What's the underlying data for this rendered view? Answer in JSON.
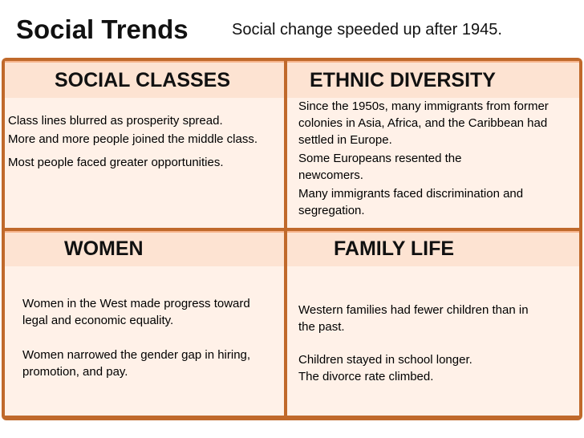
{
  "slide": {
    "title": "Social Trends",
    "subtitle": "Social change speeded up after 1945."
  },
  "quadrants": {
    "social_classes": {
      "heading": "SOCIAL CLASSES",
      "lines": [
        "Class lines blurred as prosperity spread.",
        "More and more people joined the middle class.",
        "Most people faced greater opportunities."
      ]
    },
    "ethnic_diversity": {
      "heading": "ETHNIC DIVERSITY",
      "lines": [
        "Since the 1950s, many immigrants from former colonies in Asia, Africa, and the Caribbean had  settled in Europe.",
        "Some Europeans resented the newcomers.",
        "Many immigrants faced discrimination and segregation."
      ]
    },
    "women": {
      "heading": "WOMEN",
      "lines": [
        "Women in the West made progress toward legal and economic equality.",
        "Women narrowed the gender gap in hiring, promotion, and pay."
      ]
    },
    "family_life": {
      "heading": "FAMILY LIFE",
      "lines": [
        "Western families had fewer children than in the past.",
        "Children stayed in school longer.",
        "The divorce rate climbed."
      ]
    }
  },
  "colors": {
    "frame": "#c0692b",
    "header_fill": "#fde3d2",
    "body_fill": "#fff1e8"
  }
}
